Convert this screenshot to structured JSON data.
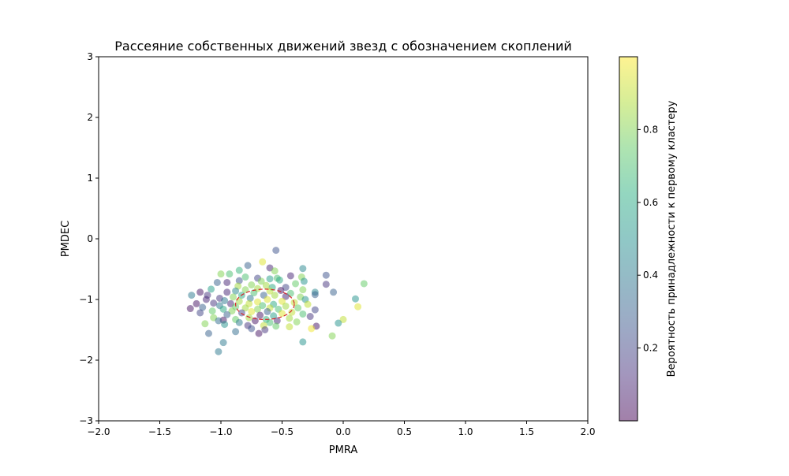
{
  "chart_data": {
    "type": "scatter",
    "title": "Рассеяние собственных движений звезд с обозначением скоплений",
    "xlabel": "PMRA",
    "ylabel": "PMDEC",
    "xlim": [
      -2.0,
      2.0
    ],
    "ylim": [
      -3,
      3
    ],
    "xticks": [
      -2.0,
      -1.5,
      -1.0,
      -0.5,
      0.0,
      0.5,
      1.0,
      1.5,
      2.0
    ],
    "xtick_labels": [
      "−2.0",
      "−1.5",
      "−1.0",
      "−0.5",
      "0.0",
      "0.5",
      "1.0",
      "1.5",
      "2.0"
    ],
    "yticks": [
      -3,
      -2,
      -1,
      0,
      1,
      2,
      3
    ],
    "ytick_labels": [
      "−3",
      "−2",
      "−1",
      "0",
      "1",
      "2",
      "3"
    ],
    "grid": false,
    "colormap": "viridis",
    "point_alpha": 0.5,
    "colorbar": {
      "label": "Вероятность принадлежности к первому кластеру",
      "range": [
        0.0,
        1.0
      ],
      "ticks": [
        0.2,
        0.4,
        0.6,
        0.8
      ],
      "tick_labels": [
        "0.2",
        "0.4",
        "0.6",
        "0.8"
      ]
    },
    "cluster_ellipse": {
      "center": [
        -0.64,
        -1.08
      ],
      "width": 0.48,
      "height": 0.5,
      "color": "#d62728",
      "linestyle": "dashed"
    },
    "points": [
      {
        "x": -0.55,
        "y": -0.19,
        "p": 0.25
      },
      {
        "x": -0.66,
        "y": -0.38,
        "p": 0.95
      },
      {
        "x": -0.78,
        "y": -0.44,
        "p": 0.3
      },
      {
        "x": -0.6,
        "y": -0.48,
        "p": 0.1
      },
      {
        "x": -0.33,
        "y": -0.49,
        "p": 0.45
      },
      {
        "x": -0.56,
        "y": -0.53,
        "p": 0.8
      },
      {
        "x": -0.85,
        "y": -0.52,
        "p": 0.65
      },
      {
        "x": -1.0,
        "y": -0.58,
        "p": 0.8
      },
      {
        "x": -0.93,
        "y": -0.58,
        "p": 0.7
      },
      {
        "x": -0.14,
        "y": -0.6,
        "p": 0.25
      },
      {
        "x": -0.43,
        "y": -0.61,
        "p": 0.1
      },
      {
        "x": -0.34,
        "y": -0.63,
        "p": 0.8
      },
      {
        "x": -0.8,
        "y": -0.63,
        "p": 0.7
      },
      {
        "x": -0.54,
        "y": -0.65,
        "p": 0.7
      },
      {
        "x": -0.7,
        "y": -0.65,
        "p": 0.2
      },
      {
        "x": -0.6,
        "y": -0.66,
        "p": 0.55
      },
      {
        "x": -0.52,
        "y": -0.68,
        "p": 0.6
      },
      {
        "x": -0.85,
        "y": -0.69,
        "p": 0.25
      },
      {
        "x": -0.32,
        "y": -0.7,
        "p": 0.5
      },
      {
        "x": -0.67,
        "y": -0.7,
        "p": 0.8
      },
      {
        "x": -0.95,
        "y": -0.72,
        "p": 0.1
      },
      {
        "x": -1.03,
        "y": -0.72,
        "p": 0.3
      },
      {
        "x": -0.14,
        "y": -0.75,
        "p": 0.15
      },
      {
        "x": 0.17,
        "y": -0.74,
        "p": 0.75
      },
      {
        "x": -0.39,
        "y": -0.74,
        "p": 0.75
      },
      {
        "x": -0.75,
        "y": -0.76,
        "p": 0.8
      },
      {
        "x": -0.63,
        "y": -0.77,
        "p": 0.85
      },
      {
        "x": -0.86,
        "y": -0.78,
        "p": 0.85
      },
      {
        "x": -0.58,
        "y": -0.8,
        "p": 0.6
      },
      {
        "x": -0.47,
        "y": -0.8,
        "p": 0.2
      },
      {
        "x": -0.7,
        "y": -0.82,
        "p": 0.85
      },
      {
        "x": -1.08,
        "y": -0.83,
        "p": 0.55
      },
      {
        "x": -0.8,
        "y": -0.84,
        "p": 0.8
      },
      {
        "x": -0.33,
        "y": -0.84,
        "p": 0.8
      },
      {
        "x": -0.88,
        "y": -0.86,
        "p": 0.45
      },
      {
        "x": -0.6,
        "y": -0.86,
        "p": 0.9
      },
      {
        "x": -0.51,
        "y": -0.85,
        "p": 0.05
      },
      {
        "x": -0.95,
        "y": -0.88,
        "p": 0.1
      },
      {
        "x": -1.17,
        "y": -0.88,
        "p": 0.05
      },
      {
        "x": -0.23,
        "y": -0.88,
        "p": 0.45
      },
      {
        "x": -0.08,
        "y": -0.88,
        "p": 0.3
      },
      {
        "x": -0.73,
        "y": -0.89,
        "p": 0.7
      },
      {
        "x": -0.43,
        "y": -0.9,
        "p": 0.7
      },
      {
        "x": -1.24,
        "y": -0.93,
        "p": 0.4
      },
      {
        "x": -1.11,
        "y": -0.93,
        "p": 0.15
      },
      {
        "x": -0.83,
        "y": -0.93,
        "p": 0.6
      },
      {
        "x": -0.65,
        "y": -0.93,
        "p": 0.3
      },
      {
        "x": -0.56,
        "y": -0.93,
        "p": 0.85
      },
      {
        "x": -0.23,
        "y": -0.92,
        "p": 0.3
      },
      {
        "x": -0.9,
        "y": -0.96,
        "p": 0.8
      },
      {
        "x": -0.47,
        "y": -0.95,
        "p": 0.1
      },
      {
        "x": -0.35,
        "y": -0.96,
        "p": 0.8
      },
      {
        "x": -1.01,
        "y": -0.98,
        "p": 0.15
      },
      {
        "x": -0.76,
        "y": -0.98,
        "p": 0.4
      },
      {
        "x": -1.12,
        "y": -1.0,
        "p": 0.1
      },
      {
        "x": 0.1,
        "y": -0.99,
        "p": 0.5
      },
      {
        "x": -0.62,
        "y": -1.0,
        "p": 0.95
      },
      {
        "x": -0.31,
        "y": -1.0,
        "p": 0.5
      },
      {
        "x": -0.97,
        "y": -1.02,
        "p": 0.4
      },
      {
        "x": -0.85,
        "y": -1.03,
        "p": 0.85
      },
      {
        "x": -0.5,
        "y": -1.03,
        "p": 0.95
      },
      {
        "x": -0.7,
        "y": -1.04,
        "p": 0.95
      },
      {
        "x": -0.4,
        "y": -1.05,
        "p": 0.9
      },
      {
        "x": -1.06,
        "y": -1.06,
        "p": 0.15
      },
      {
        "x": -1.2,
        "y": -1.07,
        "p": 0.05
      },
      {
        "x": -0.92,
        "y": -1.07,
        "p": 0.1
      },
      {
        "x": -0.77,
        "y": -1.07,
        "p": 0.9
      },
      {
        "x": -0.57,
        "y": -1.08,
        "p": 0.6
      },
      {
        "x": -0.29,
        "y": -1.08,
        "p": 0.9
      },
      {
        "x": -1.01,
        "y": -1.1,
        "p": 0.4
      },
      {
        "x": -0.66,
        "y": -1.1,
        "p": 0.7
      },
      {
        "x": -0.47,
        "y": -1.11,
        "p": 0.85
      },
      {
        "x": 0.12,
        "y": -1.12,
        "p": 0.95
      },
      {
        "x": -1.15,
        "y": -1.13,
        "p": 0.3
      },
      {
        "x": -0.88,
        "y": -1.12,
        "p": 0.75
      },
      {
        "x": -0.8,
        "y": -1.14,
        "p": 0.85
      },
      {
        "x": -0.6,
        "y": -1.14,
        "p": 0.9
      },
      {
        "x": -0.37,
        "y": -1.14,
        "p": 0.75
      },
      {
        "x": -1.25,
        "y": -1.15,
        "p": 0.05
      },
      {
        "x": -0.98,
        "y": -1.16,
        "p": 0.6
      },
      {
        "x": -0.7,
        "y": -1.16,
        "p": 0.8
      },
      {
        "x": -0.53,
        "y": -1.16,
        "p": 0.7
      },
      {
        "x": -0.23,
        "y": -1.17,
        "p": 0.2
      },
      {
        "x": -1.07,
        "y": -1.19,
        "p": 0.75
      },
      {
        "x": -0.91,
        "y": -1.19,
        "p": 0.8
      },
      {
        "x": -0.75,
        "y": -1.2,
        "p": 0.95
      },
      {
        "x": -0.62,
        "y": -1.2,
        "p": 0.3
      },
      {
        "x": -0.42,
        "y": -1.21,
        "p": 0.9
      },
      {
        "x": -1.17,
        "y": -1.22,
        "p": 0.2
      },
      {
        "x": -0.83,
        "y": -1.22,
        "p": 0.2
      },
      {
        "x": -0.5,
        "y": -1.23,
        "p": 0.95
      },
      {
        "x": -0.33,
        "y": -1.24,
        "p": 0.7
      },
      {
        "x": -0.95,
        "y": -1.25,
        "p": 0.3
      },
      {
        "x": -0.68,
        "y": -1.26,
        "p": 0.05
      },
      {
        "x": -0.57,
        "y": -1.27,
        "p": 0.55
      },
      {
        "x": -0.27,
        "y": -1.28,
        "p": 0.15
      },
      {
        "x": -1.06,
        "y": -1.3,
        "p": 0.8
      },
      {
        "x": -0.77,
        "y": -1.3,
        "p": 0.85
      },
      {
        "x": -0.44,
        "y": -1.31,
        "p": 0.85
      },
      {
        "x": -0.88,
        "y": -1.33,
        "p": 0.75
      },
      {
        "x": -0.63,
        "y": -1.33,
        "p": 0.65
      },
      {
        "x": -0.98,
        "y": -1.34,
        "p": 0.05
      },
      {
        "x": -1.02,
        "y": -1.35,
        "p": 0.35
      },
      {
        "x": 0.0,
        "y": -1.33,
        "p": 0.9
      },
      {
        "x": -0.72,
        "y": -1.35,
        "p": 0.05
      },
      {
        "x": -0.54,
        "y": -1.35,
        "p": 0.1
      },
      {
        "x": -0.38,
        "y": -1.37,
        "p": 0.8
      },
      {
        "x": -0.85,
        "y": -1.38,
        "p": 0.4
      },
      {
        "x": -0.6,
        "y": -1.38,
        "p": 0.7
      },
      {
        "x": -0.04,
        "y": -1.39,
        "p": 0.5
      },
      {
        "x": -1.13,
        "y": -1.4,
        "p": 0.8
      },
      {
        "x": -0.97,
        "y": -1.41,
        "p": 0.5
      },
      {
        "x": -0.78,
        "y": -1.43,
        "p": 0.15
      },
      {
        "x": -0.65,
        "y": -1.43,
        "p": 0.9
      },
      {
        "x": -0.55,
        "y": -1.44,
        "p": 0.75
      },
      {
        "x": -0.22,
        "y": -1.44,
        "p": 0.05
      },
      {
        "x": -0.44,
        "y": -1.45,
        "p": 0.9
      },
      {
        "x": -0.26,
        "y": -1.48,
        "p": 0.98
      },
      {
        "x": -0.75,
        "y": -1.48,
        "p": 0.25
      },
      {
        "x": -0.64,
        "y": -1.5,
        "p": 0.15
      },
      {
        "x": -0.88,
        "y": -1.53,
        "p": 0.35
      },
      {
        "x": -0.69,
        "y": -1.56,
        "p": 0.05
      },
      {
        "x": -1.1,
        "y": -1.56,
        "p": 0.3
      },
      {
        "x": -0.09,
        "y": -1.6,
        "p": 0.8
      },
      {
        "x": -0.33,
        "y": -1.7,
        "p": 0.5
      },
      {
        "x": -0.98,
        "y": -1.71,
        "p": 0.4
      },
      {
        "x": -1.02,
        "y": -1.86,
        "p": 0.4
      }
    ]
  }
}
